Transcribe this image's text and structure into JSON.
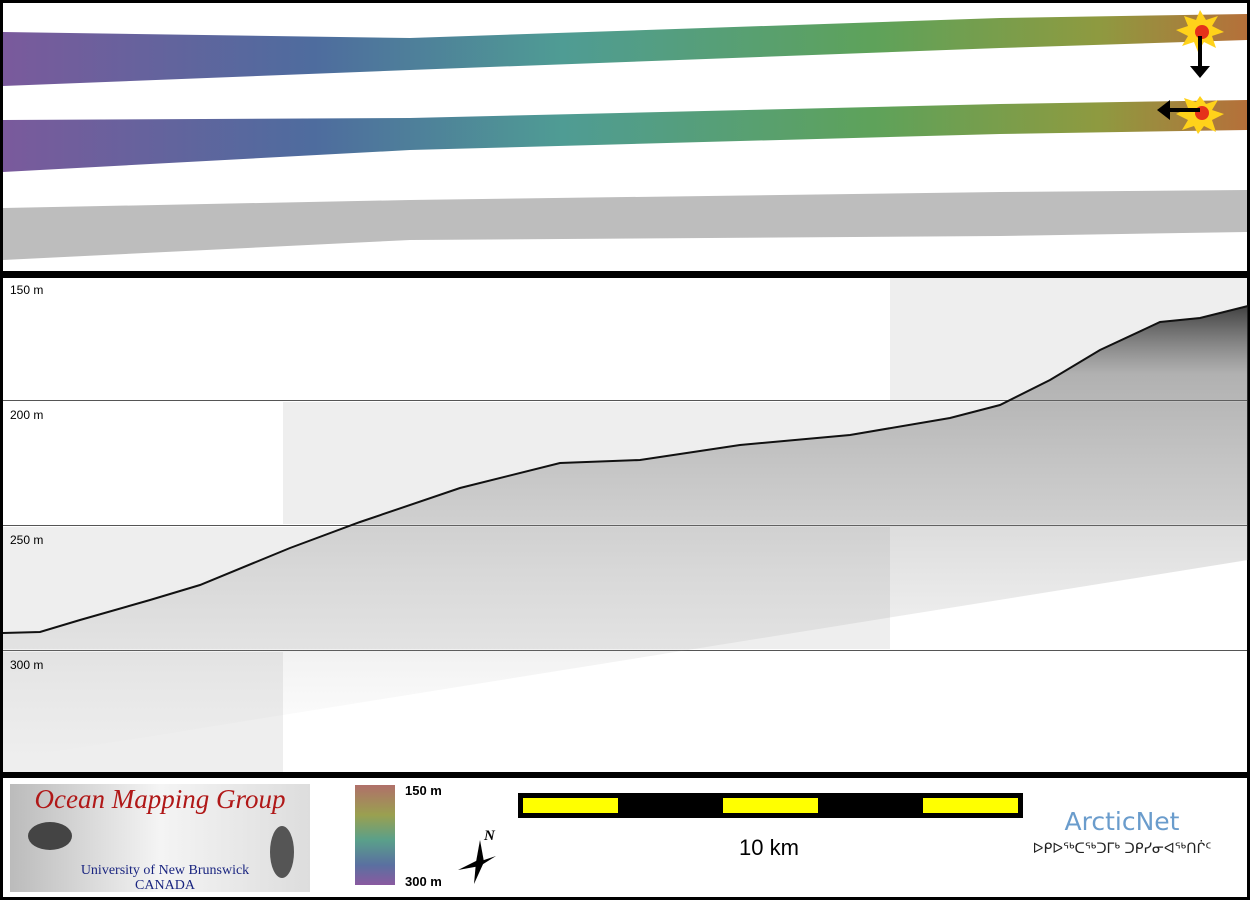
{
  "profile": {
    "depth_labels": [
      "150 m",
      "200 m",
      "250 m",
      "300 m"
    ]
  },
  "footer": {
    "logo": {
      "title": "Ocean Mapping Group",
      "university": "University of New Brunswick",
      "country": "CANADA"
    },
    "colorbar": {
      "top": "150 m",
      "bottom": "300 m"
    },
    "north": "N",
    "scale_bar": "10 km",
    "partner": {
      "name": "ArcticNet",
      "syllabics": "ᐅᑭᐅᖅᑕᖅᑐᒥᒃ ᑐᑭᓯᓂᐊᖅᑎᒌᑦ"
    }
  }
}
